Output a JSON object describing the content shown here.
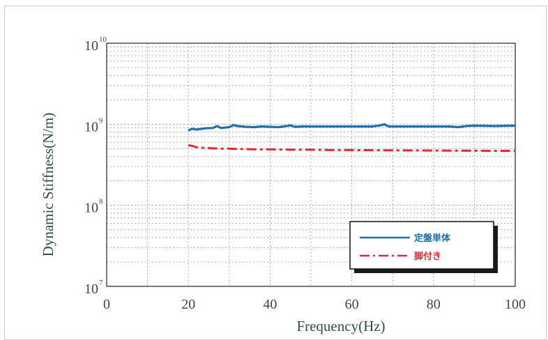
{
  "chart_data": {
    "type": "line",
    "title": "",
    "xlabel": "Frequency(Hz)",
    "ylabel": "Dynamic Stiffness(N/m)",
    "xlim": [
      0,
      100
    ],
    "ylim": [
      10000000,
      10000000000
    ],
    "yscale": "log",
    "grid": true,
    "legend_position": "bottom-right",
    "x_ticks": [
      "0",
      "20",
      "40",
      "60",
      "80",
      "100"
    ],
    "y_ticks": [
      {
        "base": "10",
        "exp": "7",
        "value": 10000000
      },
      {
        "base": "10",
        "exp": "8",
        "value": 100000000
      },
      {
        "base": "10",
        "exp": "9",
        "value": 1000000000
      },
      {
        "base": "10",
        "exp": "10",
        "value": 10000000000
      }
    ],
    "series": [
      {
        "name": "定盤単体",
        "color": "#1f6fa8",
        "style": "solid",
        "x": [
          20,
          21,
          22,
          24,
          26,
          27,
          28,
          30,
          31,
          32,
          34,
          36,
          38,
          40,
          42,
          44,
          45,
          46,
          48,
          50,
          55,
          60,
          65,
          67,
          68,
          69,
          72,
          76,
          80,
          84,
          86,
          88,
          90,
          95,
          100
        ],
        "y": [
          840000000,
          880000000,
          860000000,
          890000000,
          900000000,
          950000000,
          900000000,
          920000000,
          980000000,
          950000000,
          930000000,
          920000000,
          940000000,
          930000000,
          920000000,
          950000000,
          970000000,
          930000000,
          940000000,
          940000000,
          940000000,
          940000000,
          940000000,
          970000000,
          1000000000,
          940000000,
          940000000,
          940000000,
          940000000,
          940000000,
          920000000,
          950000000,
          960000000,
          950000000,
          960000000
        ]
      },
      {
        "name": "脚付き",
        "color": "#e8262e",
        "style": "dashdot",
        "x": [
          20,
          21,
          22,
          24,
          26,
          28,
          30,
          32,
          34,
          36,
          40,
          45,
          50,
          55,
          60,
          65,
          70,
          75,
          80,
          85,
          90,
          95,
          100
        ],
        "y": [
          550000000,
          540000000,
          520000000,
          510000000,
          505000000,
          500000000,
          500000000,
          495000000,
          495000000,
          490000000,
          490000000,
          485000000,
          485000000,
          480000000,
          480000000,
          478000000,
          476000000,
          475000000,
          474000000,
          473000000,
          472000000,
          470000000,
          470000000
        ]
      }
    ]
  }
}
